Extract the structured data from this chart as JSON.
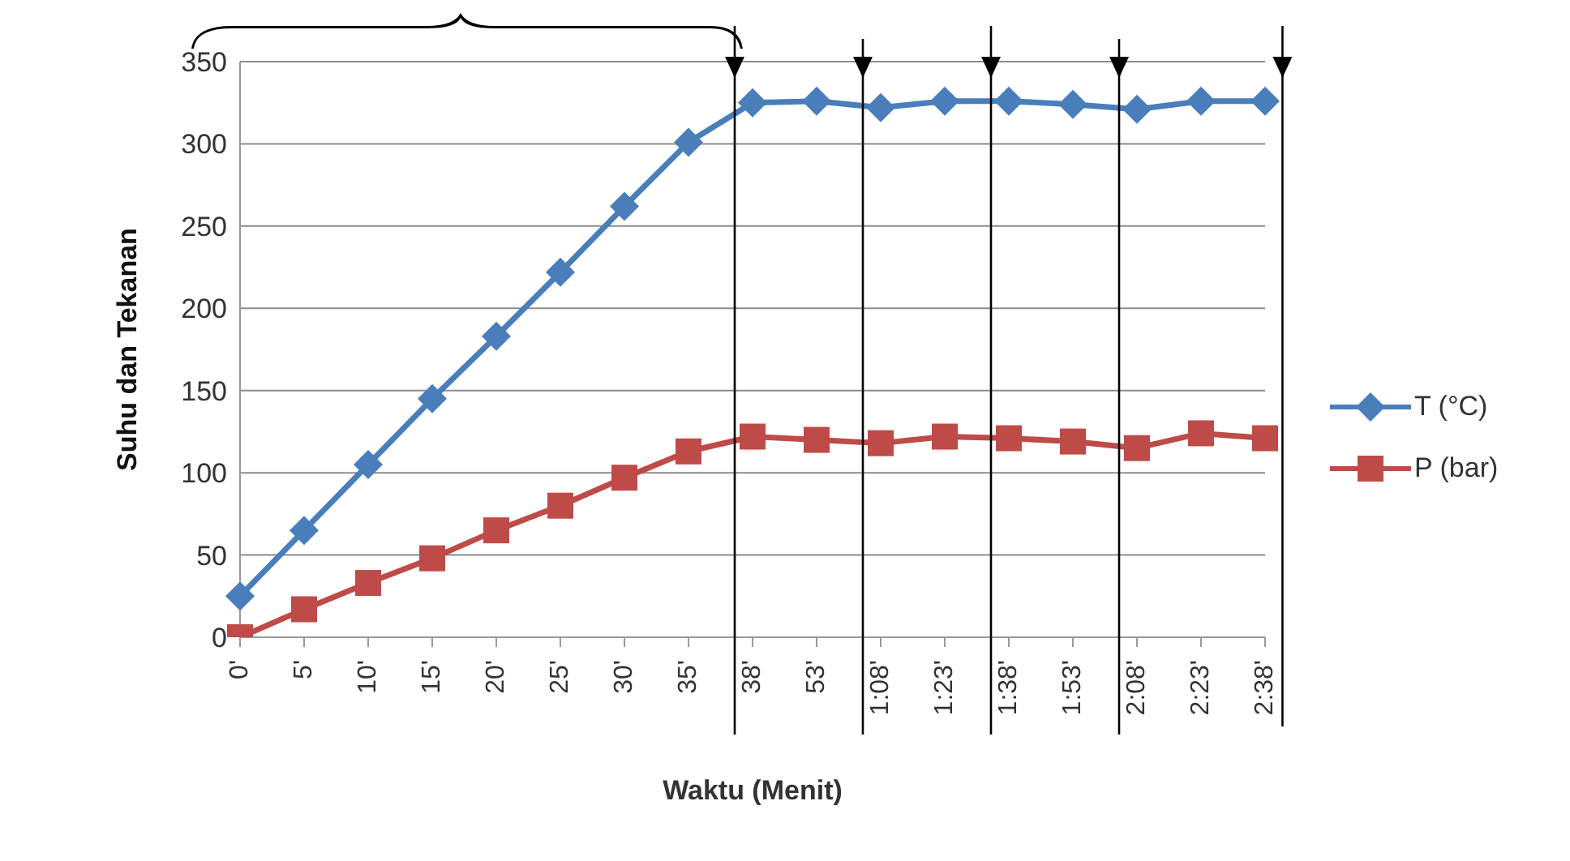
{
  "chart_data": {
    "type": "line",
    "xlabel": "Waktu (Menit)",
    "ylabel": "Suhu dan Tekanan",
    "categories": [
      "0'",
      "5'",
      "10'",
      "15'",
      "20'",
      "25'",
      "30'",
      "35'",
      "38'",
      "53'",
      "1:08'",
      "1:23'",
      "1:38'",
      "1:53'",
      "2:08'",
      "2:23'",
      "2:38'"
    ],
    "series": [
      {
        "name": "T (°C)",
        "color": "#4a7ebb",
        "marker": "diamond",
        "values": [
          25,
          65,
          105,
          145,
          183,
          222,
          262,
          301,
          325,
          326,
          322,
          326,
          326,
          324,
          321,
          326,
          326
        ]
      },
      {
        "name": "P (bar)",
        "color": "#be4b48",
        "marker": "square",
        "values": [
          0,
          17,
          33,
          48,
          65,
          80,
          97,
          113,
          122,
          120,
          118,
          122,
          121,
          119,
          115,
          124,
          121
        ]
      }
    ],
    "ylim": [
      0,
      350
    ],
    "yticks": [
      0,
      50,
      100,
      150,
      200,
      250,
      300,
      350
    ],
    "grid": "y",
    "legend": "right"
  }
}
